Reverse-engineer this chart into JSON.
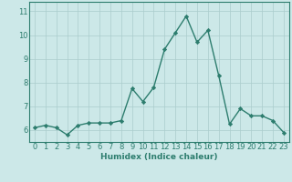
{
  "x": [
    0,
    1,
    2,
    3,
    4,
    5,
    6,
    7,
    8,
    9,
    10,
    11,
    12,
    13,
    14,
    15,
    16,
    17,
    18,
    19,
    20,
    21,
    22,
    23
  ],
  "y": [
    6.1,
    6.2,
    6.1,
    5.8,
    6.2,
    6.3,
    6.3,
    6.3,
    6.4,
    7.75,
    7.2,
    7.8,
    9.4,
    10.1,
    10.8,
    9.7,
    10.2,
    8.3,
    6.25,
    6.9,
    6.6,
    6.6,
    6.4,
    5.9
  ],
  "line_color": "#2d7d6e",
  "marker": "D",
  "markersize": 2.2,
  "linewidth": 1.0,
  "bg_color": "#cce8e8",
  "plot_bg_color": "#cce8e8",
  "grid_color": "#aacccc",
  "xlabel": "Humidex (Indice chaleur)",
  "yticks": [
    6,
    7,
    8,
    9,
    10,
    11
  ],
  "xticks": [
    0,
    1,
    2,
    3,
    4,
    5,
    6,
    7,
    8,
    9,
    10,
    11,
    12,
    13,
    14,
    15,
    16,
    17,
    18,
    19,
    20,
    21,
    22,
    23
  ],
  "ylim": [
    5.5,
    11.4
  ],
  "xlim": [
    -0.5,
    23.5
  ],
  "xlabel_fontsize": 6.5,
  "tick_fontsize": 6.0
}
